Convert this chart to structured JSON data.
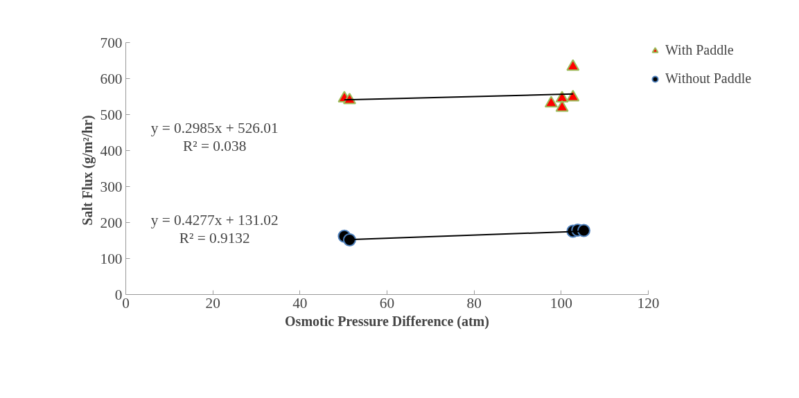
{
  "chart_data": {
    "type": "scatter",
    "xlabel": "Osmotic Pressure Difference (atm)",
    "ylabel": "Salt  Flux (g/m²/hr)",
    "xlim": [
      0,
      120
    ],
    "xticks": [
      0,
      20,
      40,
      60,
      80,
      100,
      120
    ],
    "ylim": [
      0,
      700
    ],
    "yticks": [
      0,
      100,
      200,
      300,
      400,
      500,
      600,
      700
    ],
    "grid": false,
    "legend": "top right",
    "series": [
      {
        "name": "With Paddle",
        "color": "#ff0000",
        "marker": "triangle",
        "x": [
          50.2,
          51.4,
          97.7,
          100.2,
          100.2,
          102.7,
          102.7
        ],
        "values": [
          545,
          540,
          531,
          545,
          519,
          548,
          633
        ]
      },
      {
        "name": "Without Paddle",
        "color": "#000000",
        "marker": "circle",
        "x": [
          50.2,
          51.4,
          102.7,
          103.8,
          105.2
        ],
        "values": [
          162,
          152,
          176,
          179,
          178
        ]
      },
      {
        "type": "line",
        "color": "#000000",
        "marker": "none",
        "x": [
          50.2,
          102.7
        ],
        "values": [
          541,
          557
        ]
      },
      {
        "type": "line",
        "color": "#000000",
        "marker": "none",
        "x": [
          50.2,
          105.2
        ],
        "values": [
          152,
          176
        ]
      }
    ],
    "annotations": [
      "y = 0.2985x + 526.01",
      "R² = 0.038",
      "y = 0.4277x + 131.02",
      "R² = 0.9132"
    ]
  }
}
